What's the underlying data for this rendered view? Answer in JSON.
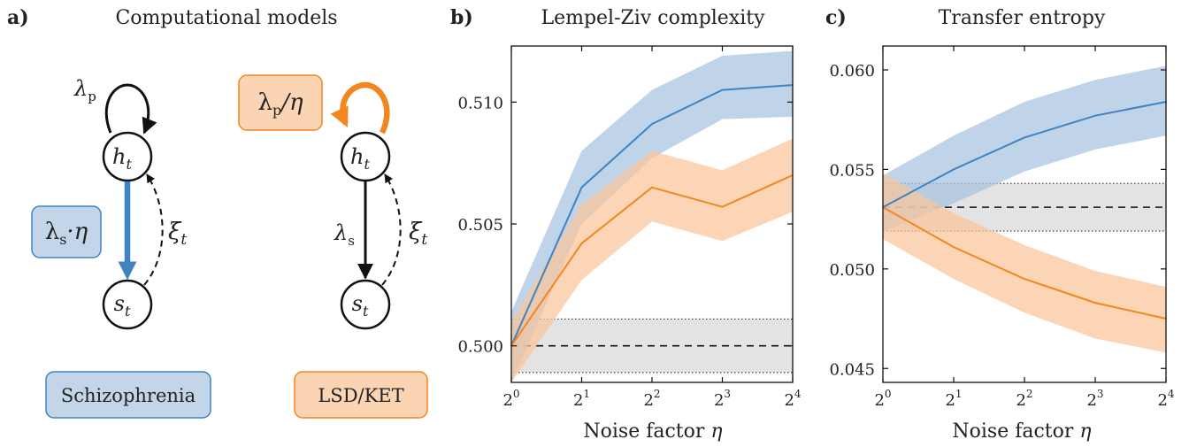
{
  "panel_a": {
    "label": "a)",
    "title": "Computational models",
    "left_model": {
      "lambda_p": "λ",
      "lambda_p_sub": "p",
      "h_node": "h",
      "h_sub": "t",
      "s_node": "s",
      "s_sub": "t",
      "xi": "ξ",
      "xi_sub": "t",
      "modulated_box_main": "λ",
      "modulated_box_sub": "s",
      "modulated_box_suffix": "·η",
      "modulated_box_color": "#c3d5e8",
      "modulated_box_border": "#3f83c0",
      "condition": "Schizophrenia",
      "arrow_color": "#3f83c0"
    },
    "right_model": {
      "modulated_box_main": "λ",
      "modulated_box_sub": "p",
      "modulated_box_suffix": "/η",
      "modulated_box_color": "#fbd5b3",
      "modulated_box_border": "#f4861f",
      "h_node": "h",
      "h_sub": "t",
      "s_node": "s",
      "s_sub": "t",
      "lambda_s": "λ",
      "lambda_s_sub": "s",
      "xi": "ξ",
      "xi_sub": "t",
      "condition": "LSD/KET",
      "arrow_color": "#f4861f"
    }
  },
  "chart_data": [
    {
      "panel_label": "b)",
      "type": "line",
      "title": "Lempel-Ziv complexity",
      "xlabel": "Noise factor",
      "xlabel_symbol": "η",
      "x_exponents": [
        0,
        1,
        2,
        3,
        4
      ],
      "x_tick_base": "2",
      "ylim": [
        0.4985,
        0.5123
      ],
      "yticks": [
        "0.500",
        "0.505",
        "0.510"
      ],
      "ytick_values": [
        0.5,
        0.505,
        0.51
      ],
      "baseline": 0.5,
      "baseline_band": [
        0.4989,
        0.5011
      ],
      "series": [
        {
          "color": "#3f83c0",
          "fill": "#a6c4e0",
          "values": [
            0.5,
            0.5065,
            0.5091,
            0.5105,
            0.5107
          ],
          "lower": [
            0.4985,
            0.505,
            0.5077,
            0.5093,
            0.5094
          ],
          "upper": [
            0.5014,
            0.508,
            0.5105,
            0.5119,
            0.5121
          ]
        },
        {
          "color": "#f4861f",
          "fill": "#fac59a",
          "values": [
            0.5,
            0.5042,
            0.5065,
            0.5057,
            0.507
          ],
          "lower": [
            0.4985,
            0.5027,
            0.5051,
            0.5043,
            0.5055
          ],
          "upper": [
            0.501,
            0.5058,
            0.508,
            0.5072,
            0.5085
          ]
        }
      ]
    },
    {
      "panel_label": "c)",
      "type": "line",
      "title": "Transfer entropy",
      "xlabel": "Noise factor",
      "xlabel_symbol": "η",
      "x_exponents": [
        0,
        1,
        2,
        3,
        4
      ],
      "x_tick_base": "2",
      "ylim": [
        0.0443,
        0.0612
      ],
      "yticks": [
        "0.045",
        "0.050",
        "0.055",
        "0.060"
      ],
      "ytick_values": [
        0.045,
        0.05,
        0.055,
        0.06
      ],
      "baseline": 0.0531,
      "baseline_band": [
        0.0519,
        0.0543
      ],
      "series": [
        {
          "color": "#3f83c0",
          "fill": "#a6c4e0",
          "values": [
            0.0531,
            0.055,
            0.0566,
            0.0577,
            0.0584
          ],
          "lower": [
            0.0519,
            0.0533,
            0.0549,
            0.056,
            0.0567
          ],
          "upper": [
            0.0547,
            0.0567,
            0.0584,
            0.0595,
            0.0602
          ]
        },
        {
          "color": "#f4861f",
          "fill": "#fac59a",
          "values": [
            0.0531,
            0.0511,
            0.0495,
            0.0483,
            0.0475
          ],
          "lower": [
            0.0515,
            0.0495,
            0.0478,
            0.0465,
            0.0458
          ],
          "upper": [
            0.0548,
            0.0528,
            0.0512,
            0.0499,
            0.0491
          ]
        }
      ]
    }
  ]
}
